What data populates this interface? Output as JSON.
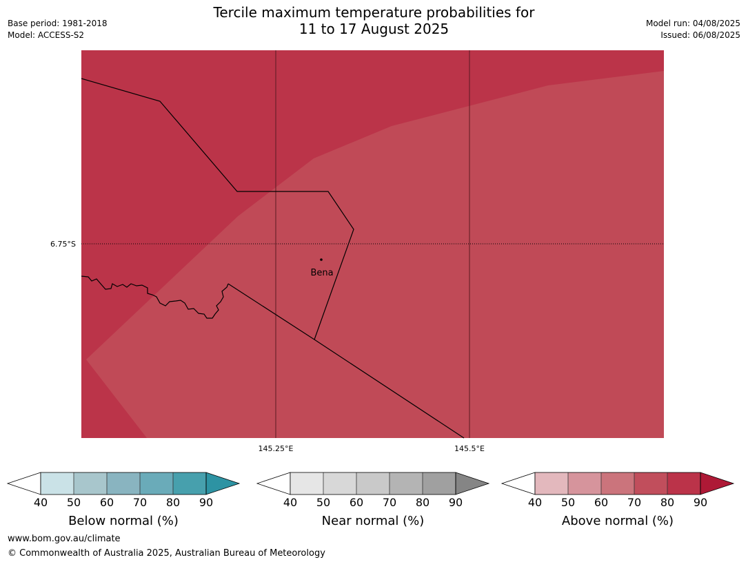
{
  "header": {
    "title_line1": "Tercile maximum temperature probabilities for",
    "title_line2": "11 to 17 August 2025",
    "base_period": "Base period: 1981-2018",
    "model": "Model: ACCESS-S2",
    "model_run": "Model run: 04/08/2025",
    "issued": "Issued: 06/08/2025"
  },
  "map": {
    "lat_label": "6.75°S",
    "lon_labels": [
      "145.25°E",
      "145.5°E"
    ],
    "place_label": "Bena",
    "colors": {
      "dark_fill": "#bb3449",
      "light_fill": "#c04a57",
      "border": "#000000"
    }
  },
  "colorbars": [
    {
      "label": "Below normal (%)",
      "ticks": [
        "40",
        "50",
        "60",
        "70",
        "80",
        "90"
      ],
      "colors": [
        "#ffffff",
        "#cae2e7",
        "#a8c6cc",
        "#89b4c0",
        "#6aabb9",
        "#47a0ad",
        "#2d93a3"
      ]
    },
    {
      "label": "Near normal (%)",
      "ticks": [
        "40",
        "50",
        "60",
        "70",
        "80",
        "90"
      ],
      "colors": [
        "#ffffff",
        "#e6e6e6",
        "#d8d8d8",
        "#c9c9c9",
        "#b4b4b4",
        "#a0a0a0",
        "#858585"
      ]
    },
    {
      "label": "Above normal (%)",
      "ticks": [
        "40",
        "50",
        "60",
        "70",
        "80",
        "90"
      ],
      "colors": [
        "#ffffff",
        "#e3b8bd",
        "#d6949c",
        "#cb747c",
        "#c14e5c",
        "#bb3349",
        "#ae1936"
      ]
    }
  ],
  "footer": {
    "url": "www.bom.gov.au/climate",
    "copyright": "© Commonwealth of Australia 2025, Australian Bureau of Meteorology"
  }
}
